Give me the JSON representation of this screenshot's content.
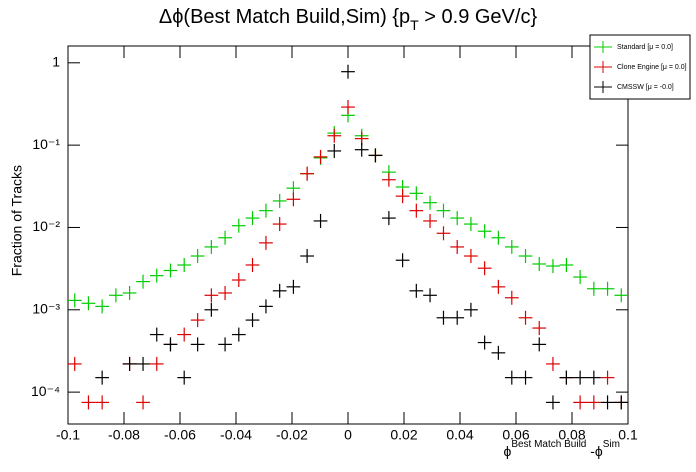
{
  "chart_data": {
    "type": "histogram-errors",
    "title": "Δϕ(Best Match Build,Sim) {p",
    "title_subscript": "T",
    "title_end": " > 0.9 GeV/c}",
    "ylabel": "Fraction of Tracks",
    "xlabel": "ϕ",
    "xlabel_sup1": "Best Match Build",
    "xlabel_mid": " -ϕ",
    "xlabel_sup2": "Sim",
    "log_y": true,
    "legend": "top-right",
    "x": [
      -0.0976,
      -0.0927,
      -0.0878,
      -0.0829,
      -0.078,
      -0.0732,
      -0.0683,
      -0.0634,
      -0.0585,
      -0.0537,
      -0.0488,
      -0.0439,
      -0.039,
      -0.0341,
      -0.0293,
      -0.0244,
      -0.0195,
      -0.0146,
      -0.0098,
      -0.0049,
      0,
      0.0049,
      0.0098,
      0.0146,
      0.0195,
      0.0244,
      0.0293,
      0.0341,
      0.039,
      0.0439,
      0.0488,
      0.0537,
      0.0585,
      0.0634,
      0.0683,
      0.0732,
      0.078,
      0.0829,
      0.0878,
      0.0927,
      0.0976
    ],
    "series": [
      {
        "name": "Standard  [μ = 0.0]",
        "color": "#00cc00",
        "values": [
          0.0013,
          0.0012,
          0.0011,
          0.0015,
          0.0016,
          0.0022,
          0.0026,
          0.003,
          0.0035,
          0.0045,
          0.0058,
          0.0075,
          0.0105,
          0.013,
          0.016,
          0.021,
          0.03,
          0.045,
          0.07,
          0.14,
          0.23,
          0.13,
          0.075,
          0.047,
          0.031,
          0.026,
          0.02,
          0.016,
          0.013,
          0.011,
          0.009,
          0.0075,
          0.0058,
          0.0045,
          0.0036,
          0.0034,
          0.0035,
          0.0025,
          0.0018,
          0.0018,
          0.0015
        ]
      },
      {
        "name": "Clone Engine  [μ = 0.0]",
        "color": "#dd0000",
        "values": [
          0.00022,
          7.5e-05,
          7.5e-05,
          null,
          0.00022,
          7.5e-05,
          0.00022,
          0.00038,
          0.0005,
          0.00075,
          0.0015,
          0.0016,
          0.0023,
          0.0035,
          0.0065,
          0.011,
          0.022,
          0.045,
          0.072,
          0.13,
          0.29,
          0.12,
          0.075,
          0.038,
          0.024,
          0.016,
          0.012,
          0.0085,
          0.0058,
          0.0045,
          0.0032,
          0.0019,
          0.0014,
          0.0008,
          0.0006,
          0.00022,
          0.00015,
          7.5e-05,
          7.5e-05,
          0.00015,
          7.5e-05
        ]
      },
      {
        "name": "CMSSW  [μ = -0.0]",
        "color": "#000000",
        "values": [
          null,
          null,
          0.00015,
          null,
          0.00022,
          0.00022,
          0.0005,
          0.00038,
          0.00015,
          0.00038,
          0.001,
          0.00038,
          0.0005,
          0.00075,
          0.0011,
          0.0017,
          0.0019,
          0.0045,
          0.012,
          0.085,
          0.78,
          0.088,
          0.075,
          0.013,
          0.004,
          0.0017,
          0.0015,
          0.0008,
          0.0008,
          0.001,
          0.0004,
          0.0003,
          0.00015,
          0.00015,
          0.00038,
          7.5e-05,
          0.00015,
          0.00015,
          0.00015,
          7.5e-05,
          7.5e-05
        ]
      }
    ],
    "xlim": [
      -0.1,
      0.1
    ],
    "xticks": [
      -0.1,
      -0.08,
      -0.06,
      -0.04,
      -0.02,
      0,
      0.02,
      0.04,
      0.06,
      0.08,
      0.1
    ],
    "ylim": [
      4.1e-05,
      1.6
    ],
    "yticks": [
      {
        "value": 0.0001,
        "label": "10⁻⁴"
      },
      {
        "value": 0.001,
        "label": "10⁻³"
      },
      {
        "value": 0.01,
        "label": "10⁻²"
      },
      {
        "value": 0.1,
        "label": "10⁻¹"
      },
      1
    ]
  }
}
